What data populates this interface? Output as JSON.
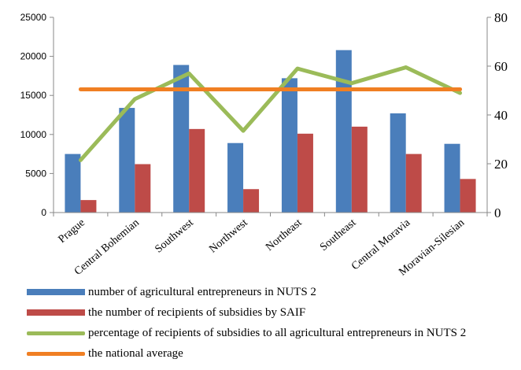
{
  "chart_data": {
    "type": "bar",
    "categories": [
      "Prague",
      "Central Bohemian",
      "Southwest",
      "Northwest",
      "Northeast",
      "Southeast",
      "Central Moravia",
      "Moravian-Silesian"
    ],
    "series": [
      {
        "name": "number of agricultural entrepreneurs in NUTS 2",
        "type": "bar",
        "axis": "left",
        "color": "#4a7ebb",
        "values": [
          7500,
          13400,
          18900,
          8900,
          17200,
          20800,
          12700,
          8800
        ]
      },
      {
        "name": "the number of recipients of subsidies by SAIF",
        "type": "bar",
        "axis": "left",
        "color": "#be4b48",
        "values": [
          1600,
          6200,
          10700,
          3000,
          10100,
          11000,
          7500,
          4300
        ]
      },
      {
        "name": "percentage of recipients of subsidies to all agricultural entrepreneurs in NUTS 2",
        "type": "line",
        "axis": "right",
        "color": "#9bbb59",
        "values": [
          21.5,
          46.5,
          57,
          33.5,
          59,
          53,
          59.5,
          49
        ]
      },
      {
        "name": "the national average",
        "type": "line",
        "axis": "right",
        "color": "#f07f23",
        "values": [
          50.5,
          50.5,
          50.5,
          50.5,
          50.5,
          50.5,
          50.5,
          50.5
        ]
      }
    ],
    "left_axis": {
      "min": 0,
      "max": 25000,
      "ticks": [
        "0",
        "5000",
        "10000",
        "15000",
        "20000",
        "25000"
      ]
    },
    "right_axis": {
      "min": 0,
      "max": 80,
      "ticks": [
        "0",
        "20",
        "40",
        "60",
        "80"
      ]
    },
    "legend_position": "bottom",
    "grid": false
  }
}
